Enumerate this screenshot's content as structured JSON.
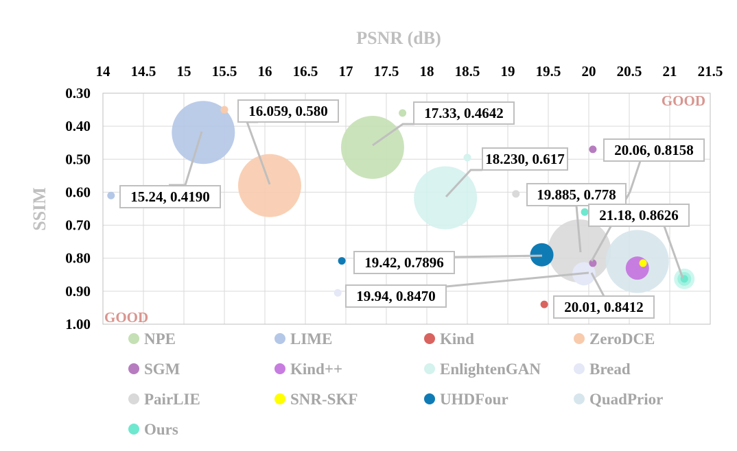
{
  "chart_data": {
    "type": "scatter",
    "xlabel": "PSNR (dB)",
    "ylabel": "SSIM",
    "xlim": [
      14,
      21.5
    ],
    "ylim": [
      0.3,
      1.0
    ],
    "x_axis_position": "top",
    "y_axis_reversed": true,
    "grid": true,
    "xticks": [
      "14",
      "14.5",
      "15",
      "15.5",
      "16",
      "16.5",
      "17",
      "17.5",
      "18",
      "18.5",
      "19",
      "19.5",
      "20",
      "20.5",
      "21",
      "21.5"
    ],
    "yticks": [
      "0.30",
      "0.40",
      "0.50",
      "0.60",
      "0.70",
      "0.80",
      "0.90",
      "1.00"
    ],
    "corner_labels": {
      "top_right": "GOOD",
      "bottom_left": "GOOD",
      "color": "#d9958f"
    },
    "series": [
      {
        "name": "NPE",
        "color": "#c5e0b4",
        "points": [
          {
            "x": 17.33,
            "y": 0.4642,
            "size": "large"
          },
          {
            "x": 17.7,
            "y": 0.36,
            "size": "small"
          }
        ]
      },
      {
        "name": "LIME",
        "color": "#b4c7e7",
        "points": [
          {
            "x": 15.24,
            "y": 0.419,
            "size": "large"
          },
          {
            "x": 14.1,
            "y": 0.61,
            "size": "small"
          }
        ]
      },
      {
        "name": "Kind",
        "color": "#d9635f",
        "points": [
          {
            "x": 19.45,
            "y": 0.94,
            "size": "small"
          }
        ]
      },
      {
        "name": "ZeroDCE",
        "color": "#f8cbad",
        "points": [
          {
            "x": 16.059,
            "y": 0.58,
            "size": "large"
          },
          {
            "x": 15.5,
            "y": 0.35,
            "size": "small"
          }
        ]
      },
      {
        "name": "SGM",
        "color": "#b77cbf",
        "points": [
          {
            "x": 20.05,
            "y": 0.47,
            "size": "small"
          },
          {
            "x": 20.05,
            "y": 0.815,
            "size": "small"
          }
        ]
      },
      {
        "name": "Kind++",
        "color": "#c77de0",
        "points": [
          {
            "x": 20.6,
            "y": 0.83,
            "size": "medium"
          }
        ]
      },
      {
        "name": "EnlightenGAN",
        "color": "#d4f2ee",
        "points": [
          {
            "x": 18.23,
            "y": 0.617,
            "size": "large"
          },
          {
            "x": 18.5,
            "y": 0.495,
            "size": "small"
          }
        ]
      },
      {
        "name": "Bread",
        "color": "#e4e8f7",
        "points": [
          {
            "x": 16.9,
            "y": 0.905,
            "size": "small"
          },
          {
            "x": 19.94,
            "y": 0.847,
            "size": "medium"
          }
        ]
      },
      {
        "name": "PairLIE",
        "color": "#d9d9d9",
        "points": [
          {
            "x": 19.885,
            "y": 0.778,
            "size": "large"
          },
          {
            "x": 19.1,
            "y": 0.605,
            "size": "small"
          }
        ]
      },
      {
        "name": "SNR-SKF",
        "color": "#ffff00",
        "points": [
          {
            "x": 20.67,
            "y": 0.815,
            "size": "small"
          }
        ]
      },
      {
        "name": "UHDFour",
        "color": "#0f7bb5",
        "points": [
          {
            "x": 19.42,
            "y": 0.7896,
            "size": "medium"
          },
          {
            "x": 16.95,
            "y": 0.808,
            "size": "small"
          }
        ]
      },
      {
        "name": "QuadPrior",
        "color": "#d6e6ec",
        "points": [
          {
            "x": 20.6,
            "y": 0.81,
            "size": "large"
          }
        ]
      },
      {
        "name": "Ours",
        "color": "#6ee8cf",
        "points": [
          {
            "x": 21.18,
            "y": 0.8626,
            "size": "small"
          },
          {
            "x": 19.95,
            "y": 0.66,
            "size": "small"
          }
        ]
      }
    ],
    "annotations": [
      {
        "text": "16.059, 0.580",
        "target_x": 16.059,
        "target_y": 0.58
      },
      {
        "text": "17.33, 0.4642",
        "target_x": 17.33,
        "target_y": 0.4642
      },
      {
        "text": "15.24, 0.4190",
        "target_x": 15.24,
        "target_y": 0.419
      },
      {
        "text": "18.230, 0.617",
        "target_x": 18.23,
        "target_y": 0.617
      },
      {
        "text": "20.06, 0.8158",
        "target_x": 20.06,
        "target_y": 0.8158
      },
      {
        "text": "19.885, 0.778",
        "target_x": 19.885,
        "target_y": 0.778
      },
      {
        "text": "21.18, 0.8626",
        "target_x": 21.18,
        "target_y": 0.8626,
        "color": "#e00000"
      },
      {
        "text": "19.42, 0.7896",
        "target_x": 19.42,
        "target_y": 0.7896
      },
      {
        "text": "19.94, 0.8470",
        "target_x": 19.94,
        "target_y": 0.847
      },
      {
        "text": "20.01, 0.8412",
        "target_x": 20.01,
        "target_y": 0.8412
      }
    ]
  }
}
